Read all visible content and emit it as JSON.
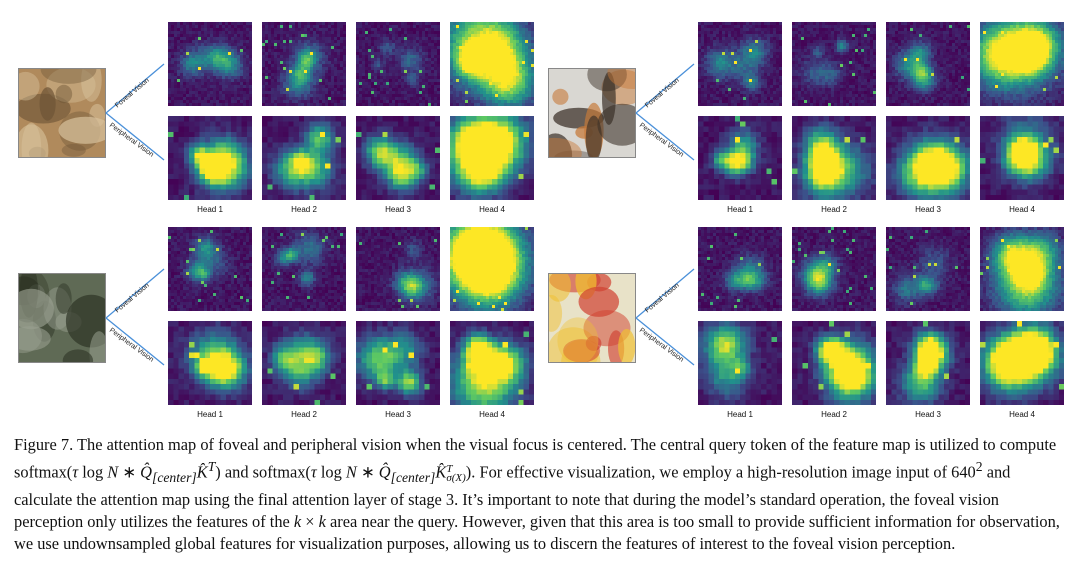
{
  "figure": {
    "panels": [
      {
        "id": "cat",
        "subject": "cat-photo",
        "thumb_colors": [
          "#b08a5c",
          "#6d5436",
          "#d8c29c"
        ]
      },
      {
        "id": "bird",
        "subject": "bird-on-branch-photo",
        "thumb_colors": [
          "#d9d7d2",
          "#3b3028",
          "#c77a3a"
        ]
      },
      {
        "id": "wader",
        "subject": "wading-bird-photo",
        "thumb_colors": [
          "#5f6a55",
          "#2d3324",
          "#9aa090"
        ]
      },
      {
        "id": "balloon",
        "subject": "hot-air-balloon-photo",
        "thumb_colors": [
          "#e8e2c8",
          "#d04030",
          "#f0c030"
        ]
      }
    ],
    "branch_labels": {
      "foveal": "Foveal Vision",
      "peripheral": "Peripheral Vision"
    },
    "head_labels": [
      "Head 1",
      "Head 2",
      "Head 3",
      "Head 4"
    ],
    "colormap": [
      "#440154",
      "#3b528b",
      "#21918c",
      "#5ec962",
      "#fde725"
    ]
  },
  "caption": {
    "label": "Figure 7.",
    "t1": " The attention map of foveal and peripheral vision when the visual focus is centered. The central query token of the feature map is utilized to compute softmax(",
    "m1": "τ",
    "t2": " log ",
    "m2": "N",
    "t3": " ∗ ",
    "m3": "Q̂",
    "s1": "[center]",
    "m4": "K̂",
    "p1": "T",
    "t4": ") and softmax(",
    "m5": "τ",
    "t5": " log ",
    "m6": "N",
    "t6": " ∗ ",
    "m7": "Q̂",
    "s2": "[center]",
    "m8": "K̂",
    "p2": "T",
    "s3": "σ(X)",
    "t7": "). For effective visualization, we employ a high-resolution image input of 640",
    "p3": "2",
    "t8": " and calculate the attention map using the final attention layer of stage 3. It’s important to note that during the model’s standard operation, the foveal vision perception only utilizes the features of the ",
    "m9": "k",
    "t9": " × ",
    "m10": "k",
    "t10": " area near the query. However, given that this area is too small to provide sufficient information for observation, we use undownsampled global features for visualization purposes, allowing us to discern the features of interest to the foveal vision perception."
  }
}
